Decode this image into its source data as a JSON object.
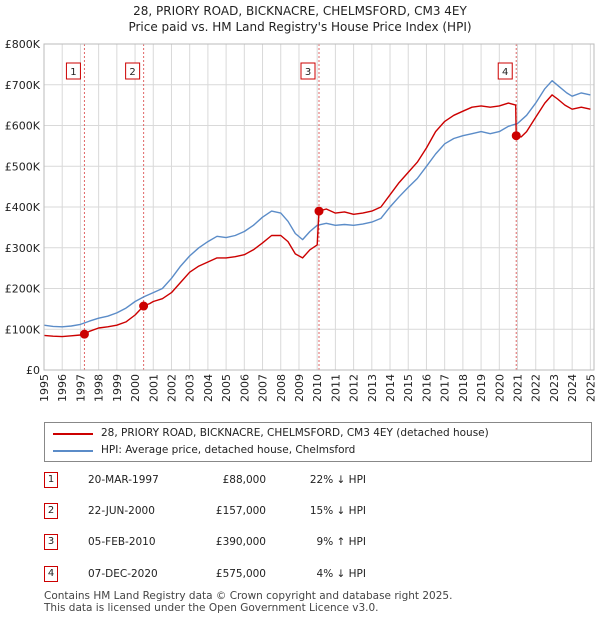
{
  "title_line1": "28, PRIORY ROAD, BICKNACRE, CHELMSFORD, CM3 4EY",
  "title_line2": "Price paid vs. HM Land Registry's House Price Index (HPI)",
  "colors": {
    "property": "#cc0000",
    "hpi": "#5b8cc8",
    "grid": "#d9d9d9",
    "marker_line": "#e06666"
  },
  "chart_data": {
    "type": "line",
    "ylim": [
      0,
      800000
    ],
    "xlim": [
      1995,
      2025.2
    ],
    "yticks": [
      {
        "value": 0,
        "label": "£0"
      },
      {
        "value": 100000,
        "label": "£100K"
      },
      {
        "value": 200000,
        "label": "£200K"
      },
      {
        "value": 300000,
        "label": "£300K"
      },
      {
        "value": 400000,
        "label": "£400K"
      },
      {
        "value": 500000,
        "label": "£500K"
      },
      {
        "value": 600000,
        "label": "£600K"
      },
      {
        "value": 700000,
        "label": "£700K"
      },
      {
        "value": 800000,
        "label": "£800K"
      }
    ],
    "xticks": [
      "1995",
      "1996",
      "1997",
      "1998",
      "1999",
      "2000",
      "2001",
      "2002",
      "2003",
      "2004",
      "2005",
      "2006",
      "2007",
      "2008",
      "2009",
      "2010",
      "2011",
      "2012",
      "2013",
      "2014",
      "2015",
      "2016",
      "2017",
      "2018",
      "2019",
      "2020",
      "2021",
      "2022",
      "2023",
      "2024",
      "2025"
    ],
    "series": [
      {
        "name": "28, PRIORY ROAD, BICKNACRE, CHELMSFORD, CM3 4EY (detached house)",
        "key": "property",
        "points": [
          [
            1995.0,
            85000
          ],
          [
            1995.5,
            83000
          ],
          [
            1996.0,
            82000
          ],
          [
            1996.5,
            84000
          ],
          [
            1997.0,
            86000
          ],
          [
            1997.22,
            88000
          ],
          [
            1997.5,
            95000
          ],
          [
            1998.0,
            103000
          ],
          [
            1998.5,
            106000
          ],
          [
            1999.0,
            110000
          ],
          [
            1999.5,
            118000
          ],
          [
            2000.0,
            135000
          ],
          [
            2000.47,
            157000
          ],
          [
            2000.8,
            163000
          ],
          [
            2001.0,
            168000
          ],
          [
            2001.5,
            175000
          ],
          [
            2002.0,
            190000
          ],
          [
            2002.5,
            215000
          ],
          [
            2003.0,
            240000
          ],
          [
            2003.5,
            255000
          ],
          [
            2004.0,
            265000
          ],
          [
            2004.5,
            275000
          ],
          [
            2005.0,
            275000
          ],
          [
            2005.5,
            278000
          ],
          [
            2006.0,
            283000
          ],
          [
            2006.5,
            295000
          ],
          [
            2007.0,
            312000
          ],
          [
            2007.5,
            330000
          ],
          [
            2008.0,
            330000
          ],
          [
            2008.4,
            315000
          ],
          [
            2008.8,
            285000
          ],
          [
            2009.2,
            275000
          ],
          [
            2009.6,
            295000
          ],
          [
            2010.0,
            307000
          ],
          [
            2010.1,
            390000
          ],
          [
            2010.5,
            395000
          ],
          [
            2011.0,
            385000
          ],
          [
            2011.5,
            388000
          ],
          [
            2012.0,
            382000
          ],
          [
            2012.5,
            385000
          ],
          [
            2013.0,
            390000
          ],
          [
            2013.5,
            400000
          ],
          [
            2014.0,
            430000
          ],
          [
            2014.5,
            460000
          ],
          [
            2015.0,
            485000
          ],
          [
            2015.5,
            510000
          ],
          [
            2016.0,
            545000
          ],
          [
            2016.5,
            585000
          ],
          [
            2017.0,
            610000
          ],
          [
            2017.5,
            625000
          ],
          [
            2018.0,
            635000
          ],
          [
            2018.5,
            645000
          ],
          [
            2019.0,
            648000
          ],
          [
            2019.5,
            645000
          ],
          [
            2020.0,
            648000
          ],
          [
            2020.5,
            655000
          ],
          [
            2020.9,
            650000
          ],
          [
            2020.93,
            575000
          ],
          [
            2021.2,
            572000
          ],
          [
            2021.5,
            585000
          ],
          [
            2022.0,
            620000
          ],
          [
            2022.5,
            655000
          ],
          [
            2022.9,
            675000
          ],
          [
            2023.2,
            665000
          ],
          [
            2023.6,
            650000
          ],
          [
            2024.0,
            640000
          ],
          [
            2024.5,
            645000
          ],
          [
            2025.0,
            640000
          ]
        ]
      },
      {
        "name": "HPI: Average price, detached house, Chelmsford",
        "key": "hpi",
        "points": [
          [
            1995.0,
            110000
          ],
          [
            1995.5,
            107000
          ],
          [
            1996.0,
            106000
          ],
          [
            1996.5,
            108000
          ],
          [
            1997.0,
            112000
          ],
          [
            1997.5,
            120000
          ],
          [
            1998.0,
            127000
          ],
          [
            1998.5,
            132000
          ],
          [
            1999.0,
            140000
          ],
          [
            1999.5,
            152000
          ],
          [
            2000.0,
            168000
          ],
          [
            2000.5,
            180000
          ],
          [
            2001.0,
            190000
          ],
          [
            2001.5,
            200000
          ],
          [
            2002.0,
            225000
          ],
          [
            2002.5,
            255000
          ],
          [
            2003.0,
            280000
          ],
          [
            2003.5,
            300000
          ],
          [
            2004.0,
            315000
          ],
          [
            2004.5,
            328000
          ],
          [
            2005.0,
            325000
          ],
          [
            2005.5,
            330000
          ],
          [
            2006.0,
            340000
          ],
          [
            2006.5,
            355000
          ],
          [
            2007.0,
            375000
          ],
          [
            2007.5,
            390000
          ],
          [
            2008.0,
            385000
          ],
          [
            2008.4,
            365000
          ],
          [
            2008.8,
            335000
          ],
          [
            2009.2,
            320000
          ],
          [
            2009.6,
            340000
          ],
          [
            2010.0,
            355000
          ],
          [
            2010.5,
            360000
          ],
          [
            2011.0,
            355000
          ],
          [
            2011.5,
            357000
          ],
          [
            2012.0,
            355000
          ],
          [
            2012.5,
            358000
          ],
          [
            2013.0,
            363000
          ],
          [
            2013.5,
            372000
          ],
          [
            2014.0,
            400000
          ],
          [
            2014.5,
            425000
          ],
          [
            2015.0,
            448000
          ],
          [
            2015.5,
            470000
          ],
          [
            2016.0,
            500000
          ],
          [
            2016.5,
            530000
          ],
          [
            2017.0,
            555000
          ],
          [
            2017.5,
            568000
          ],
          [
            2018.0,
            575000
          ],
          [
            2018.5,
            580000
          ],
          [
            2019.0,
            585000
          ],
          [
            2019.5,
            580000
          ],
          [
            2020.0,
            585000
          ],
          [
            2020.5,
            598000
          ],
          [
            2021.0,
            605000
          ],
          [
            2021.5,
            625000
          ],
          [
            2022.0,
            655000
          ],
          [
            2022.5,
            690000
          ],
          [
            2022.9,
            710000
          ],
          [
            2023.3,
            695000
          ],
          [
            2023.7,
            680000
          ],
          [
            2024.0,
            672000
          ],
          [
            2024.5,
            680000
          ],
          [
            2025.0,
            675000
          ]
        ]
      }
    ],
    "sale_points": [
      {
        "n": "1",
        "x": 1997.22,
        "y": 88000
      },
      {
        "n": "2",
        "x": 2000.47,
        "y": 157000
      },
      {
        "n": "3",
        "x": 2010.1,
        "y": 390000
      },
      {
        "n": "4",
        "x": 2020.93,
        "y": 575000
      }
    ]
  },
  "legend": {
    "property_label": "28, PRIORY ROAD, BICKNACRE, CHELMSFORD, CM3 4EY (detached house)",
    "hpi_label": "HPI: Average price, detached house, Chelmsford"
  },
  "sales": [
    {
      "n": "1",
      "date": "20-MAR-1997",
      "price": "£88,000",
      "hpi": "22% ↓ HPI"
    },
    {
      "n": "2",
      "date": "22-JUN-2000",
      "price": "£157,000",
      "hpi": "15% ↓ HPI"
    },
    {
      "n": "3",
      "date": "05-FEB-2010",
      "price": "£390,000",
      "hpi": "9% ↑ HPI"
    },
    {
      "n": "4",
      "date": "07-DEC-2020",
      "price": "£575,000",
      "hpi": "4% ↓ HPI"
    }
  ],
  "footer_line1": "Contains HM Land Registry data © Crown copyright and database right 2025.",
  "footer_line2": "This data is licensed under the Open Government Licence v3.0."
}
